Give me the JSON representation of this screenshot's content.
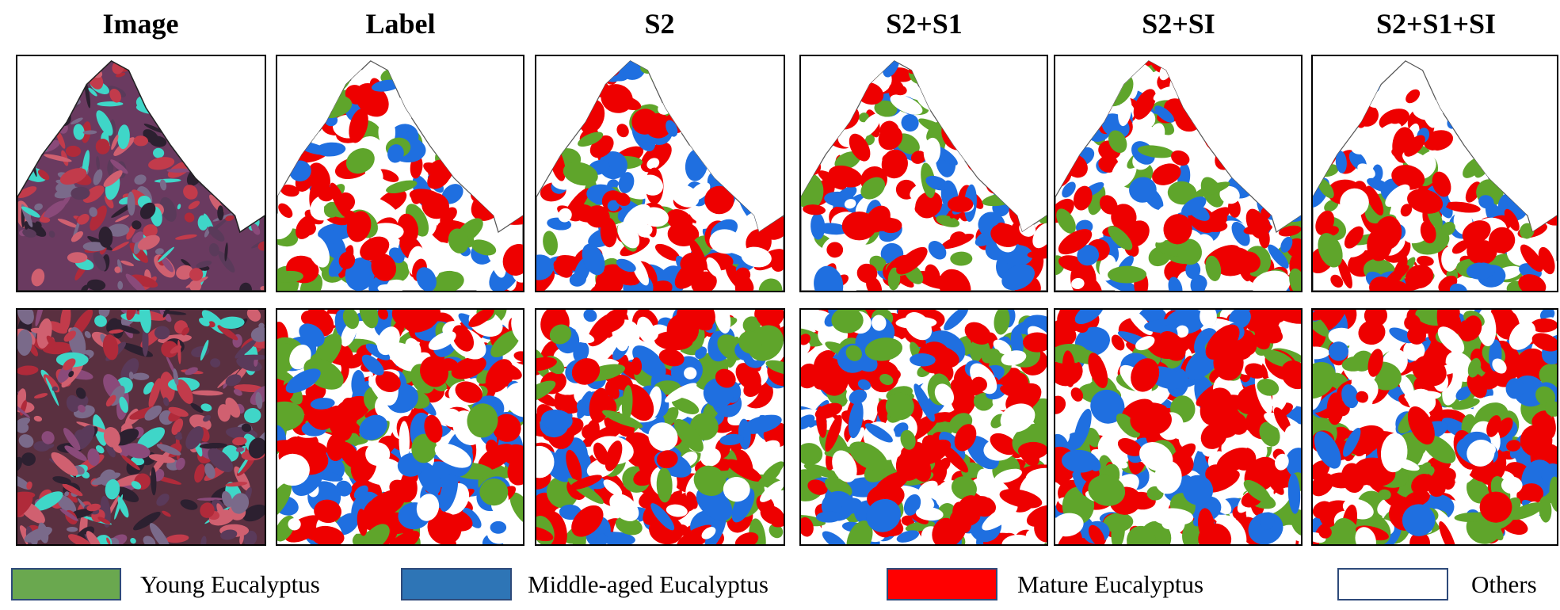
{
  "columns": {
    "image": "Image",
    "label": "Label",
    "s2": "S2",
    "s2s1": "S2+S1",
    "s2si": "S2+SI",
    "s2s1si": "S2+S1+SI"
  },
  "legend": [
    {
      "label": "Young Eucalyptus",
      "color": "#6aa84f"
    },
    {
      "label": "Middle-aged Eucalyptus",
      "color": "#2e75b6"
    },
    {
      "label": "Mature Eucalyptus",
      "color": "#ff0000"
    },
    {
      "label": "Others",
      "color": "#ffffff"
    }
  ],
  "map_colors": {
    "young": "#5fa52b",
    "middle": "#1f6fe0",
    "mature": "#ee0000",
    "others": "#ffffff"
  }
}
